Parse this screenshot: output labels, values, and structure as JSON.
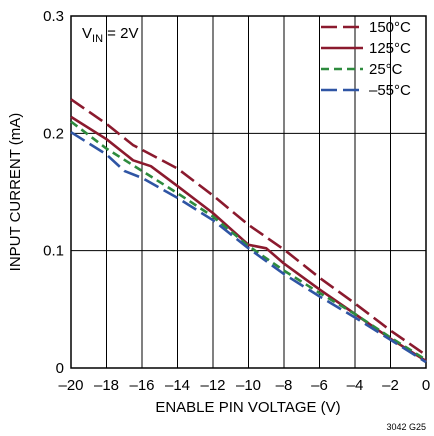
{
  "chart_data": {
    "type": "line",
    "xlabel": "ENABLE PIN VOLTAGE (V)",
    "ylabel": "INPUT CURRENT (mA)",
    "xlim": [
      -20,
      0
    ],
    "ylim": [
      0,
      0.3
    ],
    "x_ticks": [
      "–20",
      "–18",
      "–16",
      "–14",
      "–12",
      "–10",
      "–8",
      "–6",
      "–4",
      "–2",
      "0"
    ],
    "y_ticks": [
      "0",
      "0.1",
      "0.2",
      "0.3"
    ],
    "grid": true,
    "legend_position": "top-right",
    "annotation": {
      "prefix": "V",
      "subscript": "IN",
      "suffix": " = 2V"
    },
    "figure_code": "3042 G25",
    "series": [
      {
        "name": "150°C",
        "color": "#8b1a2e",
        "dash": "long-dash",
        "points": [
          [
            -20,
            0.229
          ],
          [
            -18,
            0.208
          ],
          [
            -16.5,
            0.19
          ],
          [
            -14,
            0.17
          ],
          [
            -12,
            0.147
          ],
          [
            -10,
            0.122
          ],
          [
            -8,
            0.101
          ],
          [
            -6,
            0.077
          ],
          [
            -4,
            0.055
          ],
          [
            -2,
            0.032
          ],
          [
            0,
            0.011
          ]
        ]
      },
      {
        "name": "125°C",
        "color": "#8b1a2e",
        "dash": "solid",
        "points": [
          [
            -20,
            0.214
          ],
          [
            -18,
            0.195
          ],
          [
            -16.5,
            0.177
          ],
          [
            -15.5,
            0.172
          ],
          [
            -14,
            0.155
          ],
          [
            -12,
            0.132
          ],
          [
            -10,
            0.105
          ],
          [
            -9,
            0.102
          ],
          [
            -8,
            0.089
          ],
          [
            -6,
            0.067
          ],
          [
            -4,
            0.046
          ],
          [
            -2,
            0.025
          ],
          [
            0,
            0.006
          ]
        ]
      },
      {
        "name": "25°C",
        "color": "#2e8b3e",
        "dash": "short-dash",
        "points": [
          [
            -20,
            0.21
          ],
          [
            -18,
            0.187
          ],
          [
            -16,
            0.168
          ],
          [
            -14,
            0.149
          ],
          [
            -12,
            0.129
          ],
          [
            -10,
            0.104
          ],
          [
            -8,
            0.083
          ],
          [
            -6,
            0.064
          ],
          [
            -4,
            0.046
          ],
          [
            -2,
            0.026
          ],
          [
            0,
            0.007
          ]
        ]
      },
      {
        "name": "–55°C",
        "color": "#2f55a4",
        "dash": "long-dash",
        "points": [
          [
            -20,
            0.201
          ],
          [
            -18,
            0.182
          ],
          [
            -17,
            0.168
          ],
          [
            -16,
            0.162
          ],
          [
            -14,
            0.145
          ],
          [
            -12,
            0.126
          ],
          [
            -10,
            0.102
          ],
          [
            -8,
            0.08
          ],
          [
            -6,
            0.061
          ],
          [
            -4,
            0.043
          ],
          [
            -2,
            0.024
          ],
          [
            0,
            0.005
          ]
        ]
      }
    ]
  }
}
